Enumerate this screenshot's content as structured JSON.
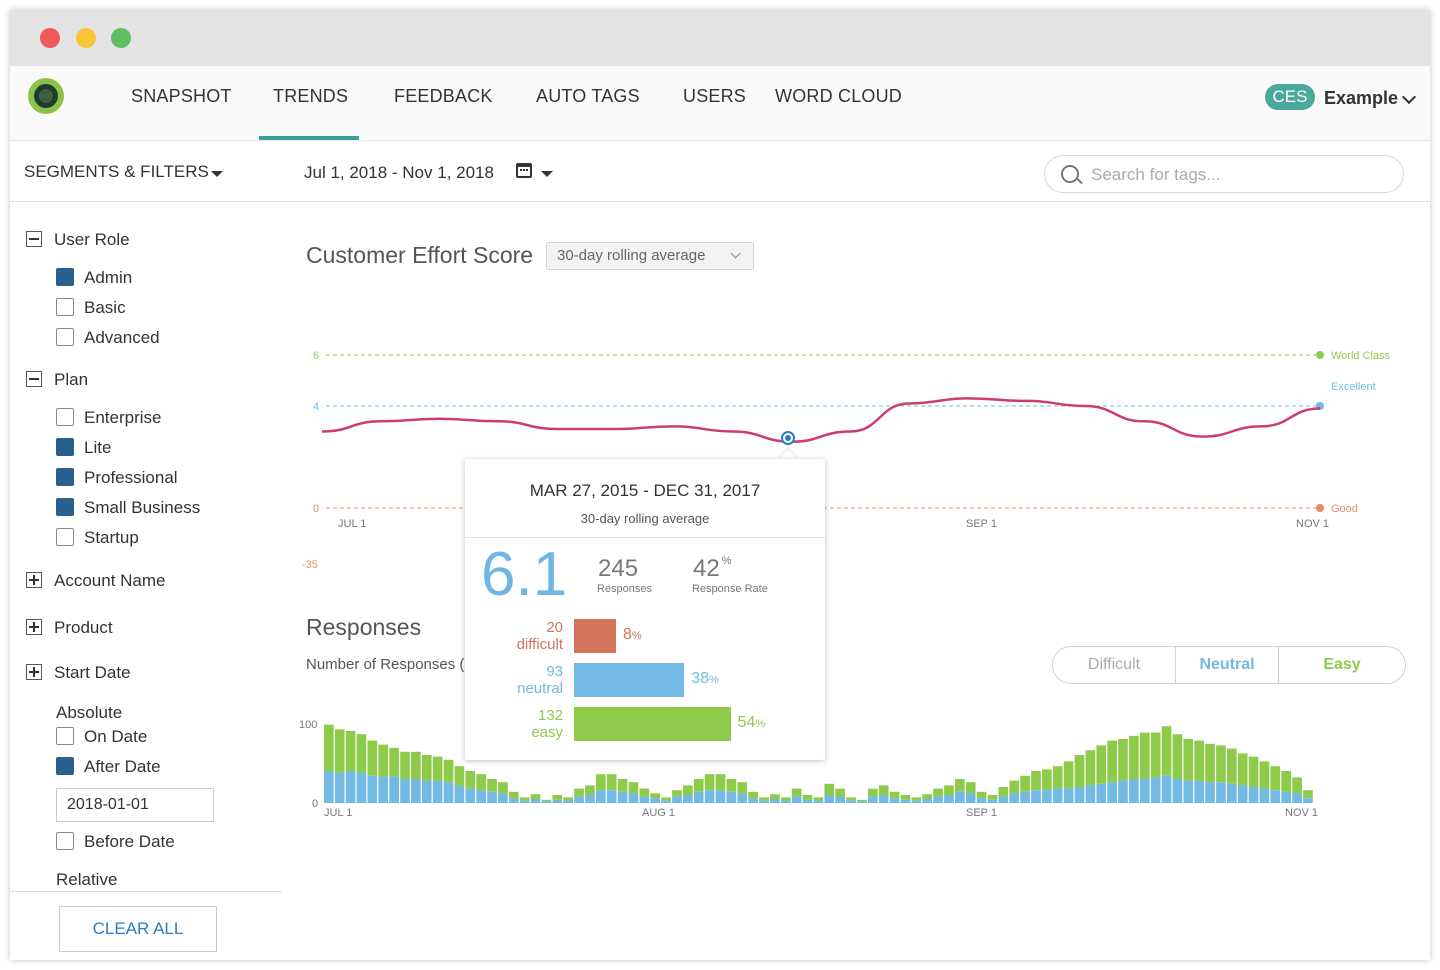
{
  "window": {
    "traffic_lights": {
      "close": "#ee5b5a",
      "minimize": "#f7c535",
      "zoom": "#5fbe5f"
    }
  },
  "nav": {
    "tabs": [
      {
        "label": "SNAPSHOT",
        "active": false
      },
      {
        "label": "TRENDS",
        "active": true
      },
      {
        "label": "FEEDBACK",
        "active": false
      },
      {
        "label": "AUTO TAGS",
        "active": false
      },
      {
        "label": "USERS",
        "active": false
      },
      {
        "label": "WORD CLOUD",
        "active": false
      }
    ],
    "badge": "CES",
    "account": "Example",
    "accent": "#3a9f95"
  },
  "toolbar": {
    "segments_label": "SEGMENTS & FILTERS",
    "date_range": "Jul 1, 2018 - Nov 1, 2018",
    "search_placeholder": "Search for tags..."
  },
  "sidebar": {
    "user_role": {
      "label": "User Role",
      "options": [
        {
          "label": "Admin",
          "checked": true
        },
        {
          "label": "Basic",
          "checked": false
        },
        {
          "label": "Advanced",
          "checked": false
        }
      ]
    },
    "plan": {
      "label": "Plan",
      "options": [
        {
          "label": "Enterprise",
          "checked": false
        },
        {
          "label": "Lite",
          "checked": true
        },
        {
          "label": "Professional",
          "checked": true
        },
        {
          "label": "Small Business",
          "checked": true
        },
        {
          "label": "Startup",
          "checked": false
        }
      ]
    },
    "account_name": "Account Name",
    "product": "Product",
    "start_date": {
      "label": "Start Date",
      "absolute": "Absolute",
      "on_date": "On Date",
      "after_date": "After Date",
      "after_value": "2018-01-01",
      "before_date": "Before Date",
      "relative": "Relative"
    },
    "clear_all": "CLEAR ALL"
  },
  "ces": {
    "title": "Customer Effort Score",
    "average_select": "30-day rolling average"
  },
  "responses": {
    "title": "Responses",
    "subtitle": "Number of Responses (",
    "toggle": [
      "Difficult",
      "Neutral",
      "Easy"
    ]
  },
  "tooltip": {
    "date_range": "MAR 27, 2015 - DEC 31, 2017",
    "subtitle": "30-day rolling average",
    "score": "6.1",
    "responses": "245",
    "responses_label": "Responses",
    "response_rate": "42",
    "response_rate_suffix": "%",
    "response_rate_label": "Response Rate",
    "breakdown": [
      {
        "count": "20",
        "label": "difficult",
        "pct": "8",
        "fraction": 0.08,
        "color": "#d4735c"
      },
      {
        "count": "93",
        "label": "neutral",
        "pct": "38",
        "fraction": 0.38,
        "color": "#72b9e4"
      },
      {
        "count": "132",
        "label": "easy",
        "pct": "54",
        "fraction": 0.54,
        "color": "#8ecb4b"
      }
    ]
  },
  "chart_data": [
    {
      "type": "line",
      "title": "Customer Effort Score",
      "x_ticks": [
        "JUL 1",
        "SEP 1",
        "NOV 1"
      ],
      "y_ticks": [
        6,
        4,
        0,
        -35
      ],
      "reference_lines": [
        {
          "label": "World Class",
          "value": 6,
          "color": "#8ecb4b"
        },
        {
          "label": "Excellent",
          "value": 4,
          "color": "#72b9e4"
        },
        {
          "label": "Good",
          "value": 0,
          "color": "#e58b6a"
        }
      ],
      "series": [
        {
          "color": "#cc3d6c",
          "values": [
            3.0,
            3.4,
            3.5,
            3.4,
            3.1,
            3.1,
            3.2,
            3.0,
            2.6,
            3.0,
            4.1,
            4.3,
            4.2,
            4.0,
            3.4,
            2.8,
            3.2,
            3.9
          ]
        }
      ],
      "highlight_index": 8
    },
    {
      "type": "bar",
      "title": "Responses",
      "x_ticks": [
        "JUL 1",
        "AUG 1",
        "SEP 1",
        "NOV 1"
      ],
      "y_ticks": [
        100,
        0
      ],
      "ylim": [
        0,
        100
      ],
      "series": [
        {
          "color": "#72b9e4",
          "values": [
            40,
            38,
            40,
            38,
            34,
            33,
            33,
            30,
            30,
            28,
            28,
            26,
            22,
            18,
            16,
            14,
            12,
            6,
            3,
            5,
            2,
            4,
            3,
            8,
            10,
            16,
            16,
            14,
            12,
            8,
            6,
            3,
            8,
            10,
            14,
            16,
            16,
            14,
            12,
            6,
            3,
            5,
            3,
            8,
            4,
            3,
            10,
            8,
            3,
            2,
            8,
            10,
            6,
            4,
            3,
            5,
            8,
            10,
            14,
            12,
            6,
            4,
            8,
            12,
            14,
            16,
            16,
            18,
            18,
            20,
            22,
            24,
            26,
            28,
            30,
            30,
            32,
            34,
            30,
            28,
            28,
            26,
            26,
            24,
            22,
            20,
            18,
            16,
            14,
            12,
            6
          ]
        },
        {
          "color": "#8ecb4b",
          "values": [
            58,
            54,
            50,
            48,
            44,
            40,
            36,
            34,
            34,
            32,
            30,
            28,
            24,
            22,
            20,
            16,
            14,
            8,
            4,
            6,
            2,
            6,
            4,
            10,
            12,
            20,
            20,
            16,
            14,
            10,
            6,
            4,
            8,
            12,
            16,
            20,
            20,
            16,
            14,
            8,
            4,
            6,
            4,
            10,
            6,
            4,
            14,
            10,
            4,
            2,
            10,
            12,
            8,
            6,
            4,
            6,
            10,
            12,
            16,
            14,
            8,
            6,
            12,
            16,
            20,
            24,
            26,
            28,
            34,
            40,
            44,
            48,
            52,
            52,
            54,
            58,
            56,
            62,
            56,
            52,
            50,
            48,
            46,
            44,
            40,
            38,
            34,
            30,
            26,
            20,
            10
          ]
        }
      ]
    }
  ]
}
